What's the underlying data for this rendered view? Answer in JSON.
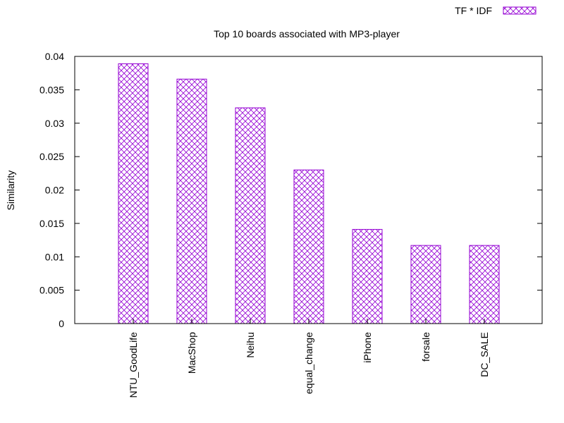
{
  "chart_data": {
    "type": "bar",
    "title": "Top 10 boards associated with MP3-player",
    "xlabel": "",
    "ylabel": "Similarity",
    "ylim": [
      0,
      0.04
    ],
    "yticks": [
      "0",
      "0.005",
      "0.01",
      "0.015",
      "0.02",
      "0.025",
      "0.03",
      "0.035",
      "0.04"
    ],
    "categories": [
      "NTU_GoodLife",
      "MacShop",
      "Neihu",
      "equal_change",
      "iPhone",
      "forsale",
      "DC_SALE"
    ],
    "series": [
      {
        "name": "TF * IDF",
        "values": [
          0.0389,
          0.0366,
          0.0323,
          0.023,
          0.0141,
          0.0117,
          0.0117
        ]
      }
    ],
    "grid": false,
    "legend_position": "top-right",
    "bar_color": "#9400d3",
    "bar_pattern": "crosshatch"
  }
}
